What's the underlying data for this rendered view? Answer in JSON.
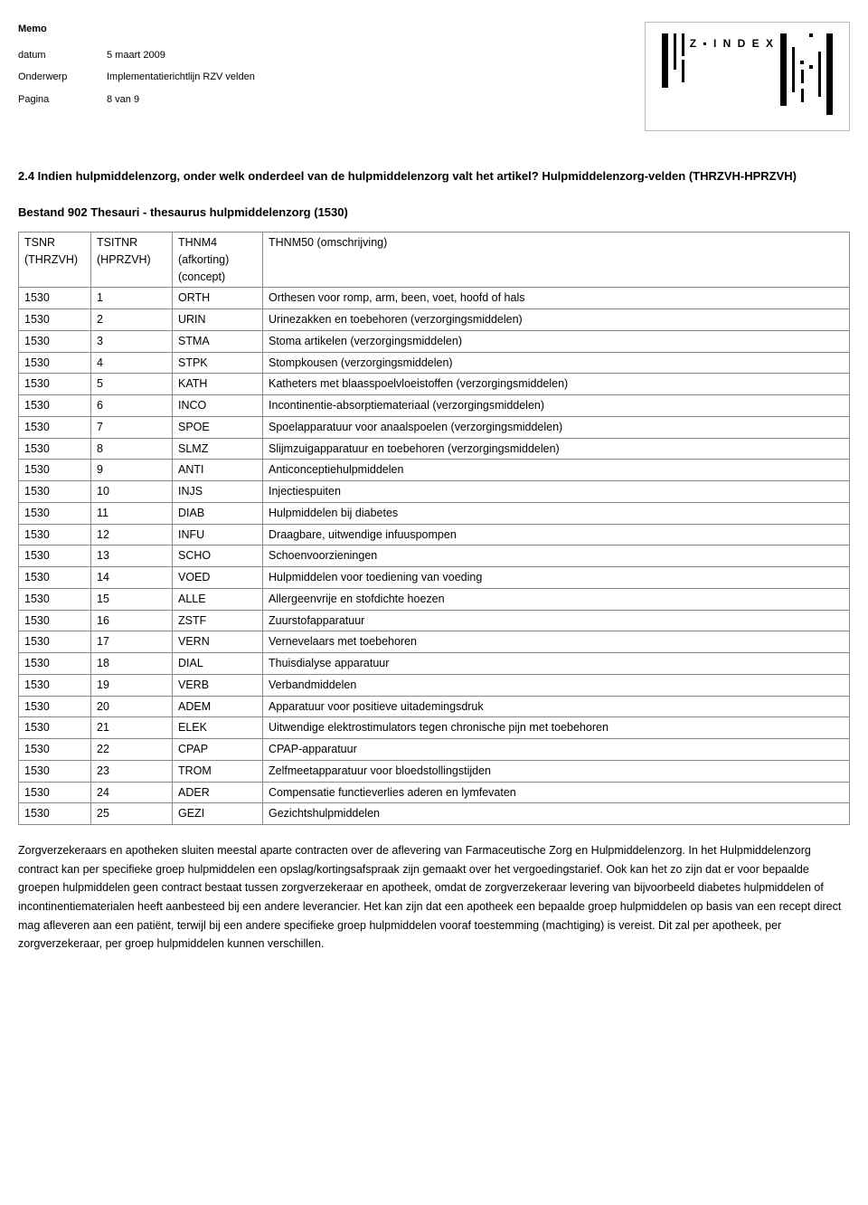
{
  "meta": {
    "memo": "Memo",
    "labels": {
      "datum": "datum",
      "onderwerp": "Onderwerp",
      "pagina": "Pagina"
    },
    "datum": "5 maart 2009",
    "onderwerp": "Implementatierichtlijn RZV velden",
    "pagina": "8 van 9"
  },
  "logo_text": "Z ▪ I N D E X",
  "section_title": "2.4 Indien hulpmiddelenzorg, onder welk onderdeel van de hulpmiddelenzorg valt het artikel? Hulpmiddelenzorg-velden (THRZVH-HPRZVH)",
  "table_caption": "Bestand 902 Thesauri - thesaurus hulpmiddelenzorg (1530)",
  "columns": {
    "c1a": "TSNR",
    "c1b": "(THRZVH)",
    "c2a": "TSITNR",
    "c2b": "(HPRZVH)",
    "c3a": "THNM4",
    "c3b": "(afkorting)",
    "c3c": "(concept)",
    "c4": "THNM50 (omschrijving)"
  },
  "rows": [
    [
      "1530",
      "1",
      "ORTH",
      "Orthesen voor romp, arm, been, voet, hoofd of hals"
    ],
    [
      "1530",
      "2",
      "URIN",
      "Urinezakken en toebehoren (verzorgingsmiddelen)"
    ],
    [
      "1530",
      "3",
      "STMA",
      "Stoma artikelen (verzorgingsmiddelen)"
    ],
    [
      "1530",
      "4",
      "STPK",
      "Stompkousen (verzorgingsmiddelen)"
    ],
    [
      "1530",
      "5",
      "KATH",
      "Katheters met blaasspoelvloeistoffen (verzorgingsmiddelen)"
    ],
    [
      "1530",
      "6",
      "INCO",
      "Incontinentie-absorptiemateriaal (verzorgingsmiddelen)"
    ],
    [
      "1530",
      "7",
      "SPOE",
      "Spoelapparatuur voor anaalspoelen  (verzorgingsmiddelen)"
    ],
    [
      "1530",
      "8",
      "SLMZ",
      "Slijmzuigapparatuur en toebehoren (verzorgingsmiddelen)"
    ],
    [
      "1530",
      "9",
      "ANTI",
      "Anticonceptiehulpmiddelen"
    ],
    [
      "1530",
      "10",
      "INJS",
      "Injectiespuiten"
    ],
    [
      "1530",
      "11",
      "DIAB",
      "Hulpmiddelen bij diabetes"
    ],
    [
      "1530",
      "12",
      "INFU",
      "Draagbare, uitwendige infuuspompen"
    ],
    [
      "1530",
      "13",
      "SCHO",
      "Schoenvoorzieningen"
    ],
    [
      "1530",
      "14",
      "VOED",
      "Hulpmiddelen voor toediening van voeding"
    ],
    [
      "1530",
      "15",
      "ALLE",
      "Allergeenvrije en stofdichte hoezen"
    ],
    [
      "1530",
      "16",
      "ZSTF",
      "Zuurstofapparatuur"
    ],
    [
      "1530",
      "17",
      "VERN",
      "Vernevelaars met toebehoren"
    ],
    [
      "1530",
      "18",
      "DIAL",
      "Thuisdialyse apparatuur"
    ],
    [
      "1530",
      "19",
      "VERB",
      "Verbandmiddelen"
    ],
    [
      "1530",
      "20",
      "ADEM",
      "Apparatuur voor positieve uitademingsdruk"
    ],
    [
      "1530",
      "21",
      "ELEK",
      "Uitwendige elektrostimulators tegen chronische pijn met toebehoren"
    ],
    [
      "1530",
      "22",
      "CPAP",
      "CPAP-apparatuur"
    ],
    [
      "1530",
      "23",
      "TROM",
      "Zelfmeetapparatuur voor bloedstollingstijden"
    ],
    [
      "1530",
      "24",
      "ADER",
      "Compensatie functieverlies aderen en lymfevaten"
    ],
    [
      "1530",
      "25",
      "GEZI",
      "Gezichtshulpmiddelen"
    ]
  ],
  "paragraph": "Zorgverzekeraars en apotheken sluiten meestal aparte contracten over de aflevering van Farmaceutische Zorg en Hulpmiddelenzorg. In het Hulpmiddelenzorg contract kan per specifieke groep hulpmiddelen een opslag/kortingsafspraak zijn gemaakt over het vergoedingstarief. Ook kan het zo zijn dat er voor bepaalde groepen hulpmiddelen geen contract bestaat tussen zorgverzekeraar en apotheek, omdat de zorgverzekeraar levering van bijvoorbeeld diabetes hulpmiddelen of incontinentiematerialen heeft aanbesteed bij een andere leverancier. Het kan zijn dat een apotheek een bepaalde groep hulpmiddelen op basis van een recept direct mag afleveren aan een patiënt, terwijl bij een andere specifieke groep hulpmiddelen vooraf toestemming (machtiging) is vereist. Dit zal per apotheek, per zorgverzekeraar, per groep hulpmiddelen kunnen verschillen."
}
